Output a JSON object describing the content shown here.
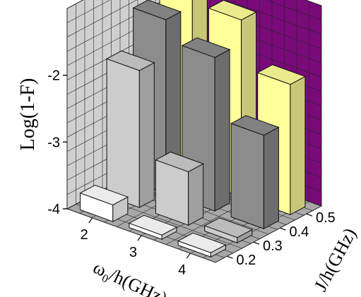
{
  "chart_data": {
    "type": "bar3d",
    "ylabel": "Log(1-F)",
    "xlabel": "ω0/h(GHz)",
    "zlabel": "J/h(GHz)",
    "x_ticks": [
      "2",
      "3",
      "4"
    ],
    "z_ticks": [
      "0.2",
      "0.3",
      "0.4",
      "0.5"
    ],
    "y_ticks": [
      "-4",
      "-3",
      "-2"
    ],
    "x": [
      2,
      3,
      4
    ],
    "z": [
      0.2,
      0.3,
      0.4,
      0.5
    ],
    "ylim": [
      -4,
      -1
    ],
    "grid": true,
    "series": [
      {
        "J": 0.2,
        "values": [
          -3.75,
          -4.0,
          -4.0
        ]
      },
      {
        "J": 0.3,
        "values": [
          -1.95,
          -3.2,
          -3.92
        ]
      },
      {
        "J": 0.4,
        "values": [
          -1.4,
          -1.7,
          -2.6
        ]
      },
      {
        "J": 0.5,
        "values": [
          -1.1,
          -1.35,
          -2.05
        ]
      }
    ],
    "colors": {
      "wall_left": "#d0d0d0",
      "wall_back": "#7a0a7a",
      "floor": "#a8a8a8",
      "J0.2": "#ffffff",
      "J0.3": "#cccccc",
      "J0.4": "#8c8c8c",
      "J0.5": "#ffff99",
      "J0.6": "#80ffff"
    }
  }
}
